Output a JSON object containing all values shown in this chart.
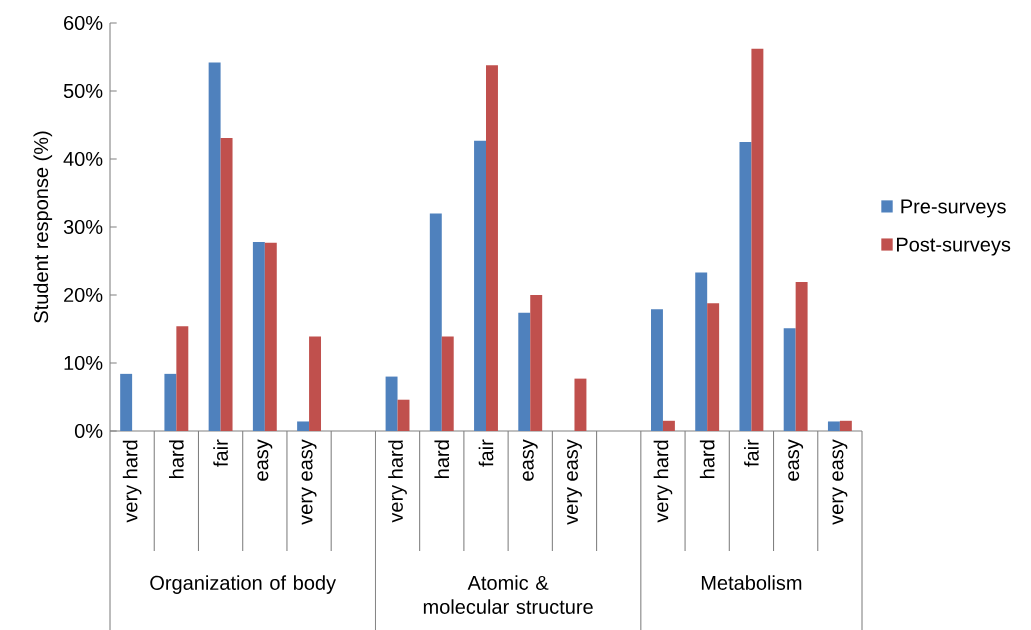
{
  "chart_data": {
    "type": "bar",
    "ylabel": "Student response  (%)",
    "categories": [
      "very hard",
      "hard",
      "fair",
      "easy",
      "very easy",
      null,
      "very hard",
      "hard",
      "fair",
      "easy",
      "very easy",
      null,
      "very hard",
      "hard",
      "fair",
      "easy",
      "very easy"
    ],
    "series": [
      {
        "name": "Pre-surveys",
        "color": "#4f81bd",
        "values": [
          8.4,
          8.4,
          54.2,
          27.8,
          1.4,
          null,
          8.0,
          32.0,
          42.7,
          17.4,
          0,
          null,
          17.9,
          23.3,
          42.5,
          15.1,
          1.4
        ]
      },
      {
        "name": "Post-surveys",
        "color": "#c0504d",
        "values": [
          0,
          15.4,
          43.1,
          27.7,
          13.9,
          null,
          4.6,
          13.9,
          53.8,
          20.0,
          7.7,
          null,
          1.5,
          18.8,
          56.2,
          21.9,
          1.5
        ]
      }
    ],
    "annotations": [
      "Organization of body",
      "Atomic & molecular structure",
      "Metabolism"
    ],
    "ylim": [
      0,
      60
    ],
    "yticks": [
      {
        "value": 0,
        "label": "0%"
      },
      {
        "value": 10,
        "label": "10%"
      },
      {
        "value": 20,
        "label": "20%"
      },
      {
        "value": 30,
        "label": "30%"
      },
      {
        "value": 40,
        "label": "40%"
      },
      {
        "value": 50,
        "label": "50%"
      },
      {
        "value": 60,
        "label": "60%"
      }
    ],
    "legend": "right"
  }
}
